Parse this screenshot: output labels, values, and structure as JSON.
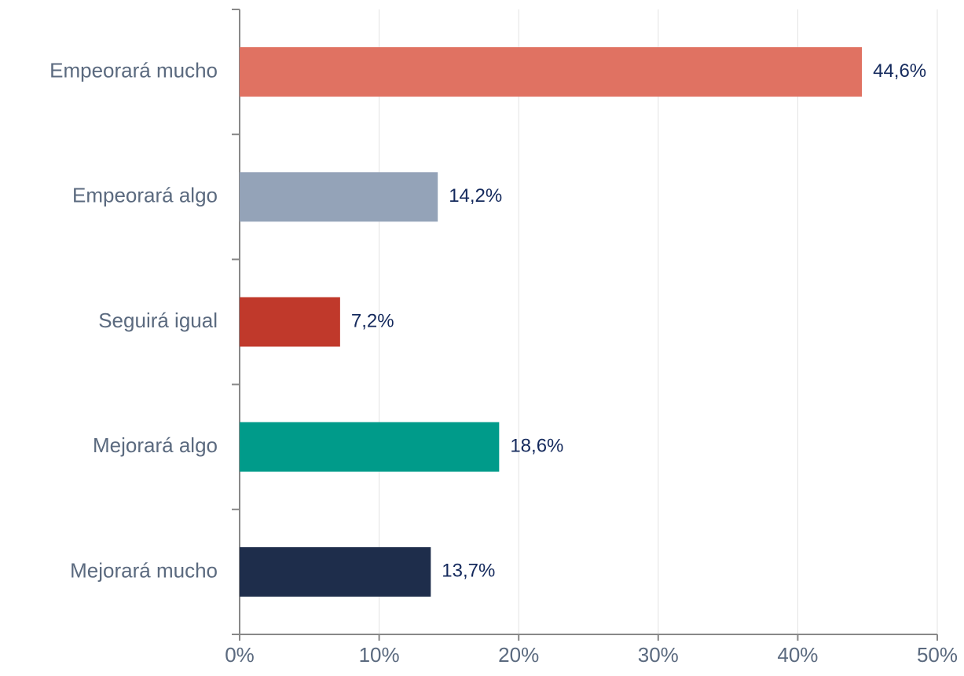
{
  "chart_data": {
    "type": "bar",
    "orientation": "horizontal",
    "categories": [
      "Empeorará mucho",
      "Empeorará algo",
      "Seguirá igual",
      "Mejorará algo",
      "Mejorará mucho"
    ],
    "values": [
      44.6,
      14.2,
      7.2,
      18.6,
      13.7
    ],
    "value_labels": [
      "44,6%",
      "14,2%",
      "7,2%",
      "18,6%",
      "13,7%"
    ],
    "colors": [
      "#e07262",
      "#94a3b8",
      "#c0392b",
      "#009b8a",
      "#1e2d4b"
    ],
    "xlim": [
      0,
      50
    ],
    "xticks": [
      {
        "value": 0,
        "label": "0%"
      },
      {
        "value": 10,
        "label": "10%"
      },
      {
        "value": 20,
        "label": "20%"
      },
      {
        "value": 30,
        "label": "30%"
      },
      {
        "value": 40,
        "label": "40%"
      },
      {
        "value": 50,
        "label": "50%"
      }
    ],
    "grid": true
  }
}
